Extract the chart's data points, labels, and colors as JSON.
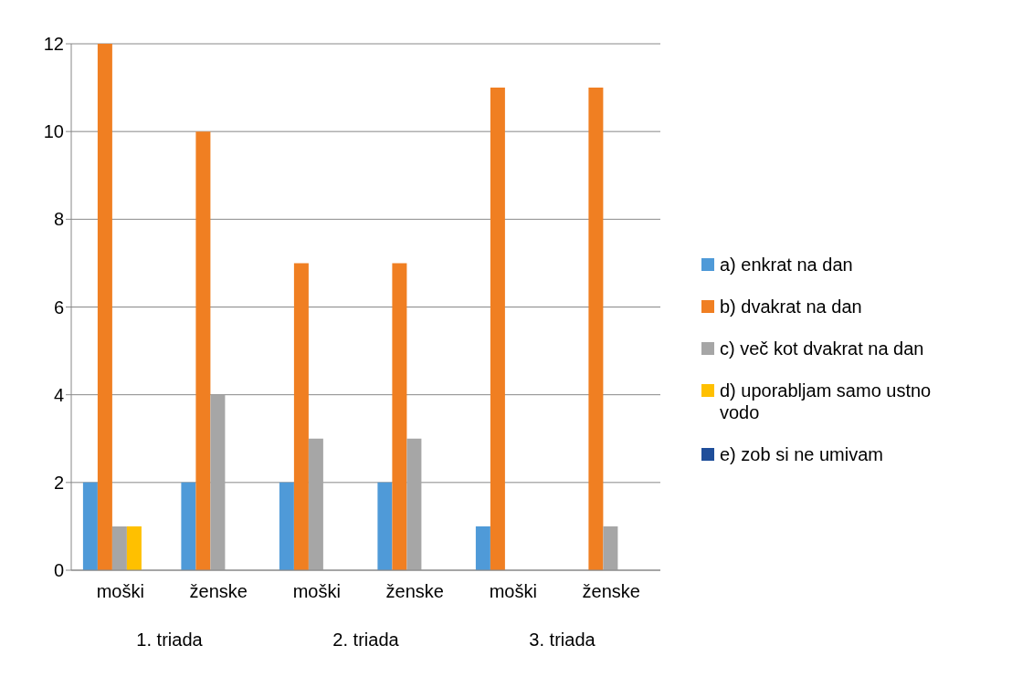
{
  "chart_data": {
    "type": "bar",
    "categories": [
      "moški",
      "ženske",
      "moški",
      "ženske",
      "moški",
      "ženske"
    ],
    "annotations": [
      "1. triada",
      "2. triada",
      "3. triada"
    ],
    "series": [
      {
        "name": "a) enkrat na dan",
        "color": "#4f9ad8",
        "values": [
          2,
          2,
          2,
          2,
          1,
          0
        ]
      },
      {
        "name": "b) dvakrat na dan",
        "color": "#f07f22",
        "values": [
          12,
          10,
          7,
          7,
          11,
          11
        ]
      },
      {
        "name": "c) več kot dvakrat na dan",
        "color": "#a6a6a6",
        "values": [
          1,
          4,
          3,
          3,
          0,
          1
        ]
      },
      {
        "name": "d) uporabljam samo ustno vodo",
        "color": "#ffc000",
        "values": [
          1,
          0,
          0,
          0,
          0,
          0
        ]
      },
      {
        "name": "e) zob si ne umivam",
        "color": "#1f4e9a",
        "values": [
          0,
          0,
          0,
          0,
          0,
          0
        ]
      }
    ],
    "ylim": [
      0,
      12
    ],
    "yticks": [
      0,
      2,
      4,
      6,
      8,
      10,
      12
    ],
    "grid": "y",
    "legend": "right"
  }
}
